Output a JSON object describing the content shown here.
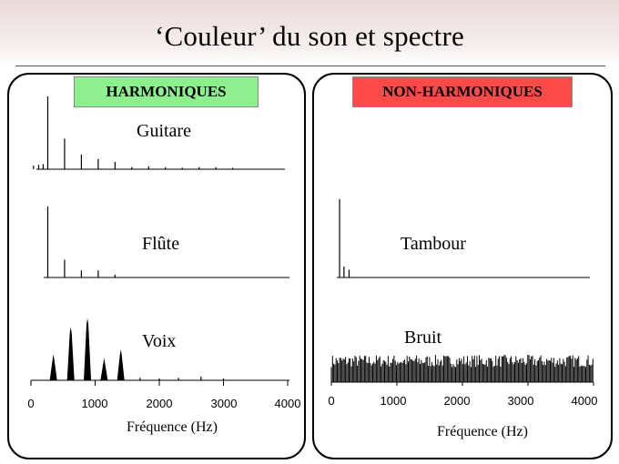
{
  "slide": {
    "title": "‘Couleur’ du son et spectre"
  },
  "left_panel": {
    "tag": "HARMONIQUES",
    "tag_color": "#8df08f",
    "spectra": [
      "Guitare",
      "Flûte",
      "Voix"
    ],
    "x_ticks": [
      "0",
      "1000",
      "2000",
      "3000",
      "4000"
    ],
    "xlabel": "Fréquence (Hz)"
  },
  "right_panel": {
    "tag": "NON-HARMONIQUES",
    "tag_color": "#ff4a4a",
    "spectra": [
      "Tambour",
      "Bruit"
    ],
    "x_ticks": [
      "0",
      "1000",
      "2000",
      "3000",
      "4000"
    ],
    "xlabel": "Fréquence (Hz)"
  },
  "chart_data": [
    {
      "type": "line",
      "title": "Guitare",
      "x_unit": "Hz",
      "xlim": [
        0,
        4000
      ],
      "ylim": [
        0,
        1
      ],
      "peaks_hz": [
        40,
        120,
        190,
        262,
        524,
        786,
        1048,
        1310,
        1572,
        1834,
        2096,
        2358,
        2620,
        2882,
        3144
      ],
      "peaks_rel": [
        0.05,
        0.06,
        0.07,
        1.0,
        0.42,
        0.2,
        0.14,
        0.1,
        0.03,
        0.04,
        0.03,
        0.02,
        0.03,
        0.03,
        0.02
      ]
    },
    {
      "type": "line",
      "title": "Flûte",
      "x_unit": "Hz",
      "xlim": [
        0,
        4000
      ],
      "ylim": [
        0,
        1
      ],
      "peaks_hz": [
        262,
        524,
        786,
        1048,
        1310
      ],
      "peaks_rel": [
        1.0,
        0.25,
        0.1,
        0.1,
        0.04
      ]
    },
    {
      "type": "line",
      "title": "Voix",
      "x_unit": "Hz",
      "xlim": [
        0,
        4000
      ],
      "ylim": [
        0,
        1
      ],
      "peaks_hz": [
        350,
        620,
        880,
        1140,
        1400,
        1700,
        2000,
        2300,
        2650,
        3000
      ],
      "peaks_rel": [
        0.42,
        0.86,
        1.0,
        0.36,
        0.5,
        0.04,
        0.03,
        0.04,
        0.06,
        0.03
      ]
    },
    {
      "type": "line",
      "title": "Tambour",
      "x_unit": "Hz",
      "xlim": [
        0,
        4000
      ],
      "ylim": [
        0,
        1
      ],
      "peaks_hz": [
        130,
        200,
        280
      ],
      "peaks_rel": [
        1.0,
        0.14,
        0.1
      ]
    },
    {
      "type": "area",
      "title": "Bruit",
      "x_unit": "Hz",
      "xlim": [
        0,
        4000
      ],
      "ylim": [
        0,
        1
      ],
      "level_rel_range": [
        0.55,
        1.0
      ]
    }
  ]
}
